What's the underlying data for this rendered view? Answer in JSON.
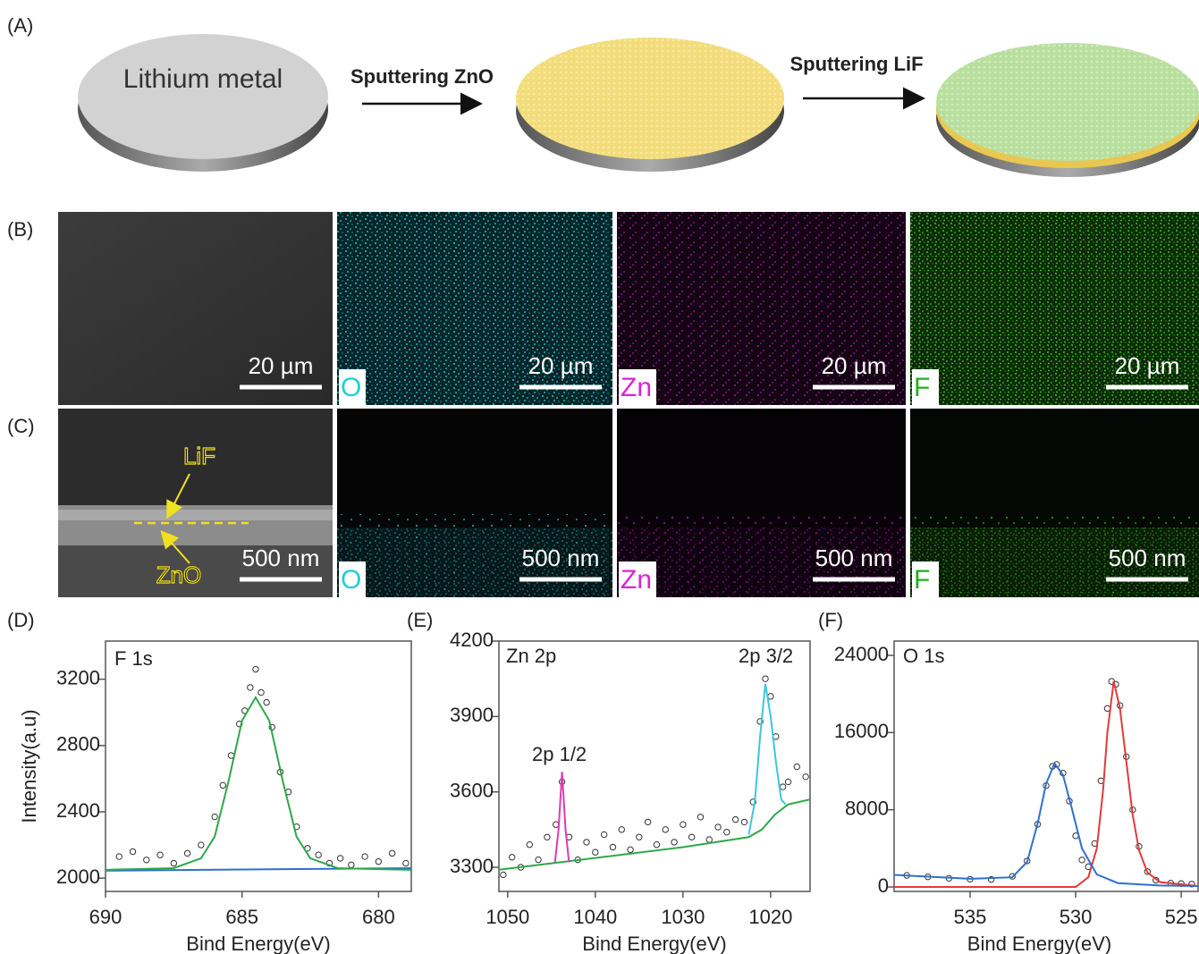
{
  "panel_labels": {
    "A": "(A)",
    "B": "(B)",
    "C": "(C)"
  },
  "schematic": {
    "disc_label": "Lithium metal",
    "step1": "Sputtering ZnO",
    "step2": "Sputtering LiF"
  },
  "micrographs": {
    "row_b": {
      "scale_bars": [
        "20 µm",
        "20 µm",
        "20 µm",
        "20 µm"
      ],
      "elements": [
        "O",
        "Zn",
        "F"
      ]
    },
    "row_c": {
      "scale_bars": [
        "500 nm",
        "500 nm",
        "500 nm",
        "500 nm"
      ],
      "elements": [
        "O",
        "Zn",
        "F"
      ],
      "layer_labels": [
        "LiF",
        "ZnO"
      ]
    }
  },
  "chart_data": [
    {
      "type": "scatter",
      "panel_label": "(D)",
      "annotations": [
        "F 1s"
      ],
      "xlabel": "Bind Energy(eV)",
      "ylabel": "Intensity(a.u)",
      "xlim": [
        690,
        678.8
      ],
      "ylim": [
        1920,
        3430
      ],
      "xticks": [
        690,
        685,
        680
      ],
      "yticks": [
        2000,
        2400,
        2800,
        3200
      ],
      "series": [
        {
          "style": "markers",
          "color": "#333333",
          "x": [
            689.5,
            689,
            688.5,
            688,
            687.5,
            687,
            686.5,
            686,
            685.7,
            685.4,
            685.1,
            684.9,
            684.7,
            684.5,
            684.3,
            684.1,
            683.9,
            683.6,
            683.3,
            683,
            682.6,
            682.2,
            681.8,
            681.4,
            681,
            680.5,
            680,
            679.5,
            679
          ],
          "values": [
            2130,
            2160,
            2110,
            2140,
            2090,
            2150,
            2200,
            2370,
            2560,
            2740,
            2930,
            3010,
            3150,
            3260,
            3120,
            3060,
            2910,
            2640,
            2520,
            2310,
            2180,
            2140,
            2090,
            2120,
            2080,
            2130,
            2100,
            2150,
            2090
          ]
        },
        {
          "style": "line",
          "color": "#2e6fd0",
          "x": [
            690,
            678.8
          ],
          "values": [
            2045,
            2060
          ]
        },
        {
          "style": "line",
          "color": "#2ea84a",
          "x": [
            690,
            687.5,
            686.5,
            686,
            685.5,
            685,
            684.5,
            684,
            683.5,
            683,
            682.5,
            681.5,
            678.8
          ],
          "values": [
            2050,
            2060,
            2120,
            2250,
            2580,
            2950,
            3090,
            2950,
            2580,
            2250,
            2120,
            2060,
            2050
          ]
        }
      ]
    },
    {
      "type": "scatter",
      "panel_label": "(E)",
      "annotations": [
        "Zn 2p",
        "2p 1/2",
        "2p 3/2"
      ],
      "xlabel": "Bind Energy(eV)",
      "xlim": [
        1051,
        1015.5
      ],
      "ylim": [
        3204,
        4200
      ],
      "xticks": [
        1050,
        1040,
        1030,
        1020
      ],
      "yticks": [
        3300,
        3600,
        3900,
        4200
      ],
      "series": [
        {
          "style": "markers",
          "color": "#333333",
          "x": [
            1050.5,
            1049.5,
            1048.5,
            1047.5,
            1046.5,
            1045.5,
            1044.5,
            1043.8,
            1043,
            1042,
            1041,
            1040,
            1039,
            1038,
            1037,
            1036,
            1035,
            1034,
            1033,
            1032,
            1031,
            1030,
            1029,
            1028,
            1027,
            1026,
            1025,
            1024,
            1023,
            1022,
            1021.2,
            1020.6,
            1020,
            1019.4,
            1018.6,
            1018,
            1017,
            1016
          ],
          "values": [
            3270,
            3340,
            3300,
            3390,
            3330,
            3420,
            3470,
            3640,
            3420,
            3330,
            3400,
            3360,
            3430,
            3380,
            3450,
            3370,
            3420,
            3480,
            3390,
            3450,
            3400,
            3470,
            3420,
            3500,
            3410,
            3460,
            3440,
            3490,
            3480,
            3560,
            3880,
            4050,
            3980,
            3820,
            3620,
            3640,
            3700,
            3660
          ]
        },
        {
          "style": "line",
          "color": "#2ea84a",
          "x": [
            1051,
            1044,
            1030,
            1022.5,
            1021,
            1019.5,
            1018,
            1015.5
          ],
          "values": [
            3290,
            3320,
            3380,
            3420,
            3450,
            3510,
            3550,
            3570
          ]
        },
        {
          "style": "line",
          "color": "#e03ab0",
          "x": [
            1044.6,
            1044.2,
            1043.8,
            1043.4,
            1043
          ],
          "values": [
            3320,
            3450,
            3680,
            3450,
            3320
          ]
        },
        {
          "style": "line",
          "color": "#3cc8d8",
          "x": [
            1022.5,
            1021.8,
            1021.2,
            1020.6,
            1020,
            1019.4,
            1018.8,
            1018.3
          ],
          "values": [
            3430,
            3560,
            3820,
            4030,
            3900,
            3720,
            3570,
            3550
          ]
        }
      ]
    },
    {
      "type": "scatter",
      "panel_label": "(F)",
      "annotations": [
        "O 1s"
      ],
      "xlabel": "Bind Energy(eV)",
      "xlim": [
        538.6,
        524.2
      ],
      "ylim": [
        -460,
        25480
      ],
      "xticks": [
        535,
        530,
        525
      ],
      "yticks": [
        0,
        8000,
        16000,
        24000
      ],
      "series": [
        {
          "style": "markers",
          "color": "#333333",
          "x": [
            538,
            537,
            536,
            535,
            534,
            533,
            532.3,
            531.8,
            531.4,
            531.1,
            530.9,
            530.6,
            530.3,
            530,
            529.7,
            529.4,
            529.1,
            528.8,
            528.5,
            528.3,
            528.1,
            527.9,
            527.6,
            527.3,
            527,
            526.6,
            526.2,
            525.5,
            525,
            524.5
          ],
          "values": [
            1200,
            1050,
            900,
            800,
            780,
            1100,
            2700,
            6500,
            10500,
            12500,
            12700,
            11800,
            8900,
            5300,
            2800,
            2100,
            4500,
            11000,
            18500,
            21300,
            21000,
            18800,
            13500,
            8000,
            4200,
            1600,
            700,
            400,
            350,
            300
          ]
        },
        {
          "style": "line",
          "color": "#e23a3a",
          "x": [
            538.6,
            530,
            529.4,
            529,
            528.7,
            528.5,
            528.2,
            527.9,
            527.6,
            527.3,
            527,
            526.6,
            526,
            524.2
          ],
          "values": [
            0,
            0,
            1000,
            4000,
            10000,
            16000,
            21300,
            18500,
            13000,
            7500,
            3800,
            1500,
            500,
            100
          ]
        },
        {
          "style": "line",
          "color": "#2e6fd0",
          "x": [
            538.6,
            535,
            533,
            532.3,
            531.8,
            531.4,
            531,
            530.6,
            530.2,
            529.7,
            529,
            528,
            526,
            524.2
          ],
          "values": [
            1250,
            850,
            1000,
            2600,
            6600,
            10700,
            12800,
            11600,
            8300,
            4000,
            1300,
            400,
            150,
            100
          ]
        }
      ]
    }
  ]
}
